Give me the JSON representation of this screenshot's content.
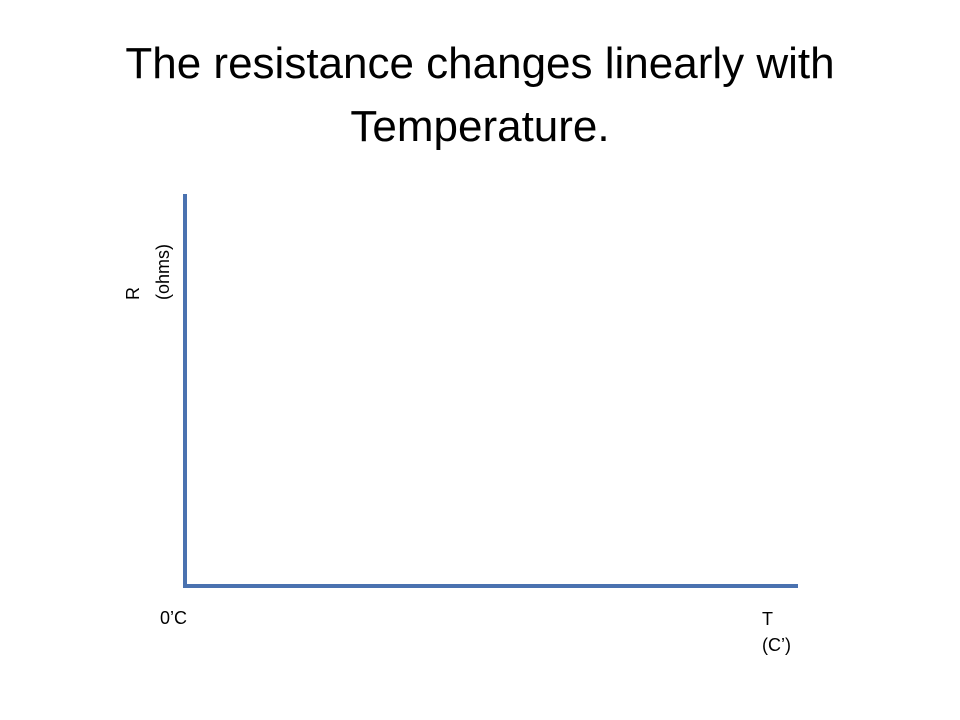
{
  "slide": {
    "title": "The resistance changes linearly with Temperature."
  },
  "chart_data": {
    "type": "line",
    "series": [],
    "y_axis": {
      "label_line1": "R",
      "label_line2": "(ohms)"
    },
    "x_axis": {
      "origin_label": "0’C",
      "label_line1": "T",
      "label_line2": "(C’)"
    },
    "colors": {
      "axis": "#4a72b0"
    },
    "grid": false
  }
}
